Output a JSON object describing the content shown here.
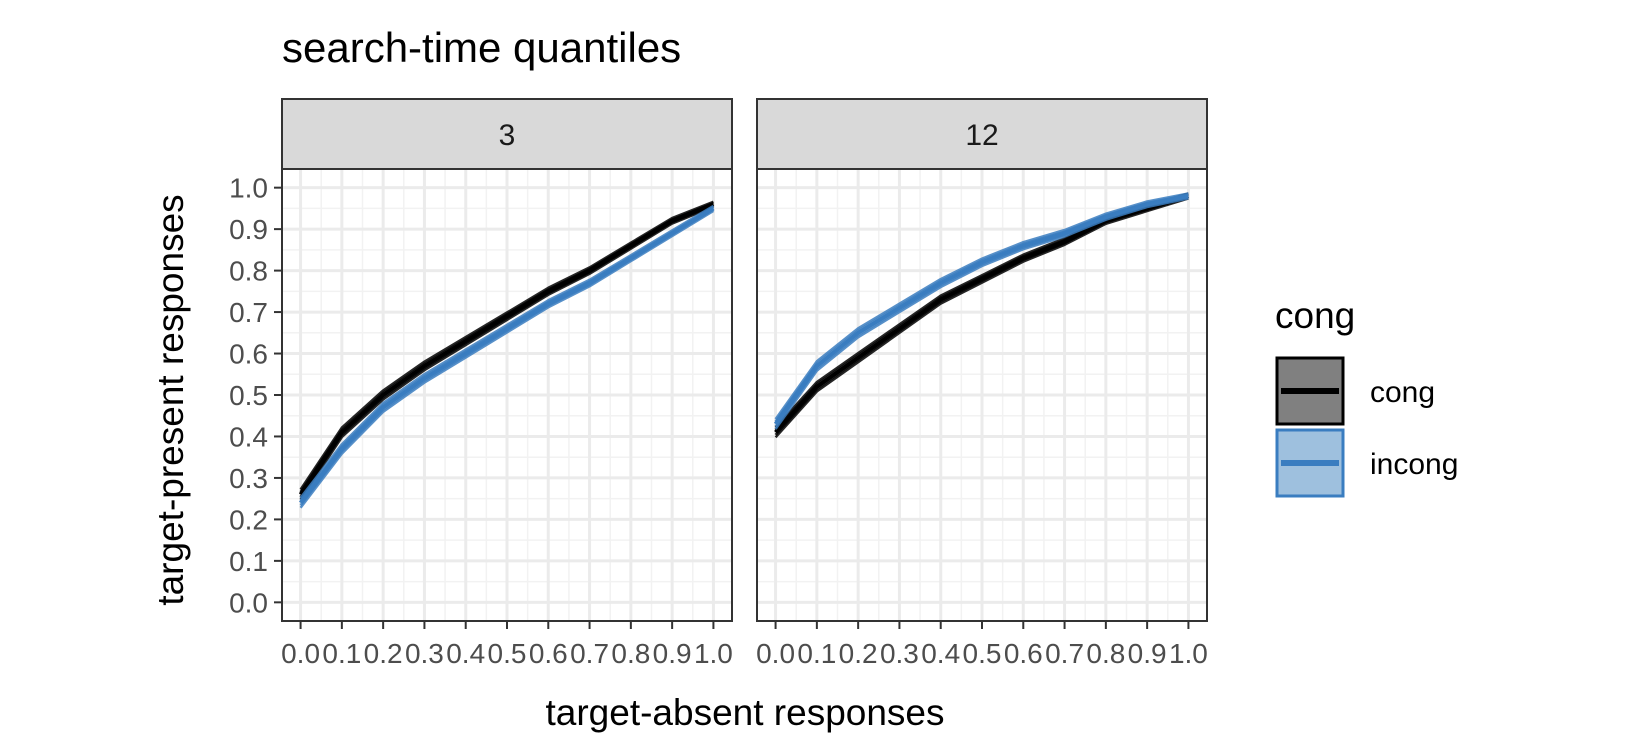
{
  "chart_data": {
    "type": "line",
    "title": "search-time quantiles",
    "xlabel": "target-absent responses",
    "ylabel": "target-present responses",
    "xlim": [
      0,
      1
    ],
    "ylim": [
      0,
      1
    ],
    "x_ticks": [
      "0.0",
      "0.1",
      "0.2",
      "0.3",
      "0.4",
      "0.5",
      "0.6",
      "0.7",
      "0.8",
      "0.9",
      "1.0"
    ],
    "y_ticks": [
      "0.0",
      "0.1",
      "0.2",
      "0.3",
      "0.4",
      "0.5",
      "0.6",
      "0.7",
      "0.8",
      "0.9",
      "1.0"
    ],
    "grid": true,
    "legend": {
      "title": "cong",
      "position": "right",
      "entries": [
        {
          "label": "cong",
          "color": "#000000",
          "fill": "#808080"
        },
        {
          "label": "incong",
          "color": "#3a7dc0",
          "fill": "#9ec0de"
        }
      ]
    },
    "panels": [
      {
        "label": "3",
        "series": [
          {
            "name": "cong",
            "color": "#000000",
            "x": [
              0.0,
              0.1,
              0.2,
              0.3,
              0.4,
              0.5,
              0.6,
              0.7,
              0.8,
              0.9,
              1.0
            ],
            "y": [
              0.26,
              0.41,
              0.5,
              0.57,
              0.63,
              0.69,
              0.75,
              0.8,
              0.86,
              0.92,
              0.96
            ]
          },
          {
            "name": "incong",
            "color": "#3a7dc0",
            "x": [
              0.0,
              0.1,
              0.2,
              0.3,
              0.4,
              0.5,
              0.6,
              0.7,
              0.8,
              0.9,
              1.0
            ],
            "y": [
              0.24,
              0.37,
              0.47,
              0.54,
              0.6,
              0.66,
              0.72,
              0.77,
              0.83,
              0.89,
              0.95
            ]
          }
        ]
      },
      {
        "label": "12",
        "series": [
          {
            "name": "cong",
            "color": "#000000",
            "x": [
              0.0,
              0.1,
              0.2,
              0.3,
              0.4,
              0.5,
              0.6,
              0.7,
              0.8,
              0.9,
              1.0
            ],
            "y": [
              0.41,
              0.52,
              0.59,
              0.66,
              0.73,
              0.78,
              0.83,
              0.87,
              0.92,
              0.95,
              0.98
            ]
          },
          {
            "name": "incong",
            "color": "#3a7dc0",
            "x": [
              0.0,
              0.1,
              0.2,
              0.3,
              0.4,
              0.5,
              0.6,
              0.7,
              0.8,
              0.9,
              1.0
            ],
            "y": [
              0.43,
              0.57,
              0.65,
              0.71,
              0.77,
              0.82,
              0.86,
              0.89,
              0.93,
              0.96,
              0.98
            ]
          }
        ]
      }
    ]
  }
}
